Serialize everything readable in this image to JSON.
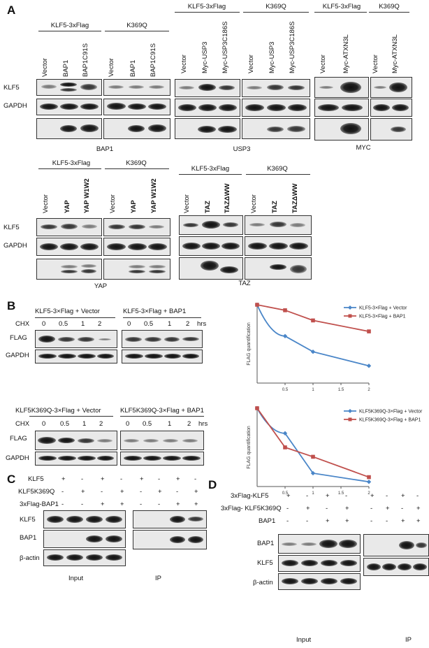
{
  "panelA": {
    "label": "A",
    "bap1": {
      "group1": "KLF5-3xFlag",
      "group2": "K369Q",
      "lanes1": [
        "Vector",
        "BAP1",
        "BAP1C91S"
      ],
      "lanes2": [
        "Vector",
        "BAP1",
        "BAP1C91S"
      ],
      "caption": "BAP1"
    },
    "usp3": {
      "group1": "KLF5-3xFlag",
      "group2": "K369Q",
      "lanes1": [
        "Vector",
        "Myc-USP3",
        "Myc-USP3C186S"
      ],
      "lanes2": [
        "Vector",
        "Myc-USP3",
        "Myc-USP3C186S"
      ],
      "caption": "USP3"
    },
    "atxn": {
      "group1": "KLF5-3xFlag",
      "group2": "K369Q",
      "lanes1": [
        "Vector",
        "Myc-ATXN3L"
      ],
      "lanes2": [
        "Vector",
        "Myc-ATXN3L"
      ],
      "caption": "MYC"
    },
    "yap": {
      "group1": "KLF5-3xFlag",
      "group2": "K369Q",
      "lanes1": [
        "Vector",
        "YAP",
        "YAP W1W2"
      ],
      "lanes2": [
        "Vector",
        "YAP",
        "YAP W1W2"
      ],
      "caption": "YAP"
    },
    "taz": {
      "group1": "KLF5-3xFlag",
      "group2": "K369Q",
      "lanes1": [
        "Vector",
        "TAZ",
        "TAZΔWW"
      ],
      "lanes2": [
        "Vector",
        "TAZ",
        "TAZΔWW"
      ],
      "caption": "TAZ"
    },
    "row_klf5": "KLF5",
    "row_gapdh": "GAPDH"
  },
  "panelB": {
    "label": "B",
    "top_left_group": "KLF5-3×Flag + Vector",
    "top_right_group": "KLF5-3×Flag + BAP1",
    "bottom_left_group": "KLF5K369Q-3×Flag + Vector",
    "bottom_right_group": "KLF5K369Q-3×Flag + BAP1",
    "chx": "CHX",
    "times": [
      "0",
      "0.5",
      "1",
      "2"
    ],
    "hrs": "hrs",
    "row_flag": "FLAG",
    "row_gapdh": "GAPDH"
  },
  "panelC": {
    "label": "C",
    "rows": [
      {
        "name": "KLF5",
        "input": [
          "+",
          "-",
          "+",
          "-"
        ],
        "ip": [
          "+",
          "-",
          "+",
          "-"
        ]
      },
      {
        "name": "KLF5K369Q",
        "input": [
          "-",
          "+",
          "-",
          "+"
        ],
        "ip": [
          "-",
          "+",
          "-",
          "+"
        ]
      },
      {
        "name": "3xFlag-BAP1",
        "input": [
          "-",
          "-",
          "+",
          "+"
        ],
        "ip": [
          "-",
          "-",
          "+",
          "+"
        ]
      }
    ],
    "blot_rows": [
      "KLF5",
      "BAP1",
      "β-actin"
    ],
    "input_label": "Input",
    "ip_label": "IP"
  },
  "panelD": {
    "label": "D",
    "rows": [
      {
        "name": "3xFlag-KLF5",
        "input": [
          "+",
          "-",
          "+",
          "-"
        ],
        "ip": [
          "+",
          "-",
          "+",
          "-"
        ]
      },
      {
        "name": "3xFlag- KLF5K369Q",
        "input": [
          "-",
          "+",
          "-",
          "+"
        ],
        "ip": [
          "-",
          "+",
          "-",
          "+"
        ]
      },
      {
        "name": "BAP1",
        "input": [
          "-",
          "-",
          "+",
          "+"
        ],
        "ip": [
          "-",
          "-",
          "+",
          "+"
        ]
      }
    ],
    "blot_rows": [
      "BAP1",
      "KLF5",
      "β-actin"
    ],
    "input_label": "Input",
    "ip_label": "IP"
  },
  "chart_data": [
    {
      "type": "line",
      "ylabel": "FLAG quantification",
      "xlabel": "",
      "x": [
        0,
        0.5,
        1,
        2
      ],
      "xticks": [
        "0.5",
        "1",
        "1.5",
        "2"
      ],
      "xlim": [
        0,
        2
      ],
      "ylim": [
        0,
        1
      ],
      "legend_position": "top-right",
      "series": [
        {
          "name": "KLF5-3×Flag + Vector",
          "color": "#4a86c8",
          "marker": "diamond",
          "values": [
            1.0,
            0.6,
            0.4,
            0.22
          ]
        },
        {
          "name": "KLF5-3×Flag + BAP1",
          "color": "#c0504d",
          "marker": "square",
          "values": [
            1.0,
            0.93,
            0.8,
            0.66
          ]
        }
      ]
    },
    {
      "type": "line",
      "ylabel": "FLAG quantification",
      "xlabel": "",
      "x": [
        0,
        0.5,
        1,
        2
      ],
      "xticks": [
        "0.5",
        "1",
        "1.5",
        "2"
      ],
      "xlim": [
        0,
        2
      ],
      "ylim": [
        0,
        1
      ],
      "legend_position": "top-right",
      "series": [
        {
          "name": "KLF5K369Q-3×Flag + Vector",
          "color": "#4a86c8",
          "marker": "diamond",
          "values": [
            1.0,
            0.68,
            0.17,
            0.06
          ]
        },
        {
          "name": "KLF5K369Q-3×Flag + BAP1",
          "color": "#c0504d",
          "marker": "square",
          "values": [
            1.0,
            0.5,
            0.38,
            0.12
          ]
        }
      ]
    }
  ]
}
